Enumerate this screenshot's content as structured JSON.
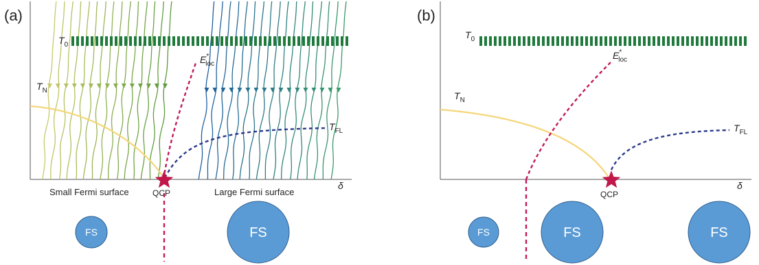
{
  "panel_a": {
    "tag": "(a)",
    "t0_label": "T",
    "t0_sub": "0",
    "tn_label": "T",
    "tn_sub": "N",
    "eloc_label": "E",
    "eloc_sup": "*",
    "eloc_sub": "loc",
    "tfl_label": "T",
    "tfl_sub": "FL",
    "delta_label": "δ",
    "qcp_label": "QCP",
    "small_fs_label": "Small Fermi surface",
    "large_fs_label": "Large Fermi surface",
    "fs_small": "FS",
    "fs_large": "FS"
  },
  "panel_b": {
    "tag": "(b)",
    "t0_label": "T",
    "t0_sub": "0",
    "tn_label": "T",
    "tn_sub": "N",
    "eloc_label": "E",
    "eloc_sup": "*",
    "eloc_sub": "loc",
    "tfl_label": "T",
    "tfl_sub": "FL",
    "delta_label": "δ",
    "qcp_label": "QCP",
    "fs_1": "FS",
    "fs_2": "FS",
    "fs_3": "FS"
  },
  "colors": {
    "t0": "#1f7a3c",
    "tn": "#f5d67a",
    "eloc": "#c2185b",
    "tfl": "#2b3a8c",
    "star": "#c0184a",
    "fs_fill": "#5b9bd5",
    "fs_stroke": "#2e5f8f",
    "axis": "#555555"
  }
}
